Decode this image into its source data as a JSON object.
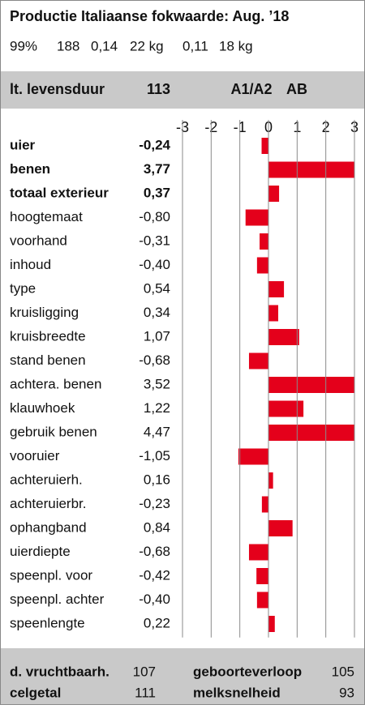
{
  "header": {
    "title": "Productie Italiaanse fokwaarde: Aug. ’18",
    "stats": [
      "99%",
      "188",
      "0,14",
      "22 kg",
      "0,11",
      "18 kg"
    ]
  },
  "lifespan": {
    "label": "lt. levensduur",
    "value": "113",
    "a1a2": "A1/A2",
    "ab": "AB"
  },
  "chart_data": {
    "type": "bar",
    "orientation": "horizontal",
    "color": "#e4001b",
    "grid": true,
    "categories": [
      "uier",
      "benen",
      "totaal exterieur",
      "hoogtemaat",
      "voorhand",
      "inhoud",
      "type",
      "kruisligging",
      "kruisbreedte",
      "stand benen",
      "achtera. benen",
      "klauwhoek",
      "gebruik benen",
      "vooruier",
      "achteruierh.",
      "achteruierbr.",
      "ophangband",
      "uierdiepte",
      "speenpl. voor",
      "speenpl. achter",
      "speenlengte"
    ],
    "values": [
      -0.24,
      3.77,
      0.37,
      -0.8,
      -0.31,
      -0.4,
      0.54,
      0.34,
      1.07,
      -0.68,
      3.52,
      1.22,
      4.47,
      -1.05,
      0.16,
      -0.23,
      0.84,
      -0.68,
      -0.42,
      -0.4,
      0.22
    ],
    "value_labels": [
      "-0,24",
      "3,77",
      "0,37",
      "-0,80",
      "-0,31",
      "-0,40",
      "0,54",
      "0,34",
      "1,07",
      "-0,68",
      "3,52",
      "1,22",
      "4,47",
      "-1,05",
      "0,16",
      "-0,23",
      "0,84",
      "-0,68",
      "-0,42",
      "-0,40",
      "0,22"
    ],
    "xlim": [
      -3,
      3
    ],
    "xticks": [
      -3,
      -2,
      -1,
      0,
      1,
      2,
      3
    ]
  },
  "footer": [
    {
      "label": "d. vruchtbaarh.",
      "value": "107"
    },
    {
      "label": "geboorteverloop",
      "value": "105"
    },
    {
      "label": "celgetal",
      "value": "111"
    },
    {
      "label": "melksnelheid",
      "value": "93"
    }
  ]
}
